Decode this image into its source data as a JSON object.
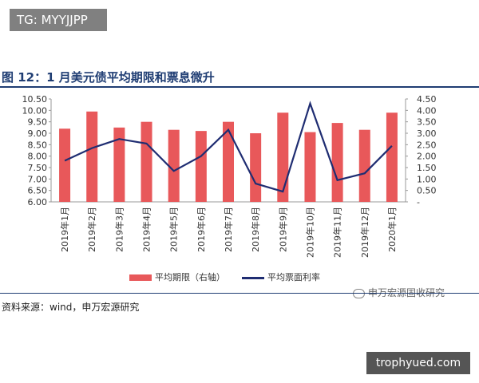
{
  "tag": "TG: MYYJJPP",
  "title": "图 12：1 月美元债平均期限和票息微升",
  "source": "资料来源：wind，申万宏源研究",
  "watermark": "申万宏源固收研究",
  "url_box": "trophyued.com",
  "colors": {
    "bar": "#e8585a",
    "line": "#1f2d72",
    "title": "#1f3d73"
  },
  "chart_data": {
    "type": "bar",
    "categories": [
      "2019年1月",
      "2019年2月",
      "2019年3月",
      "2019年4月",
      "2019年5月",
      "2019年6月",
      "2019年7月",
      "2019年8月",
      "2019年9月",
      "2019年10月",
      "2019年11月",
      "2019年12月",
      "2020年1月"
    ],
    "series": [
      {
        "name": "平均期限（右轴）",
        "kind": "bar",
        "axis": "left",
        "values": [
          9.2,
          9.95,
          9.25,
          9.5,
          9.15,
          9.1,
          9.5,
          9.0,
          9.9,
          9.05,
          9.45,
          9.15,
          9.9
        ]
      },
      {
        "name": "平均票面利率",
        "kind": "line",
        "axis": "right",
        "values": [
          1.8,
          2.35,
          2.75,
          2.55,
          1.35,
          2.0,
          3.15,
          0.8,
          0.45,
          4.3,
          0.95,
          1.25,
          2.45
        ]
      }
    ],
    "left_axis": {
      "ylim": [
        6.0,
        10.5
      ],
      "ticks": [
        "6.00",
        "6.50",
        "7.00",
        "7.50",
        "8.00",
        "8.50",
        "9.00",
        "9.50",
        "10.00",
        "10.50"
      ]
    },
    "right_axis": {
      "ylim": [
        0,
        4.5
      ],
      "ticks": [
        "-",
        "0.50",
        "1.00",
        "1.50",
        "2.00",
        "2.50",
        "3.00",
        "3.50",
        "4.00",
        "4.50"
      ]
    },
    "legend_position": "bottom"
  }
}
